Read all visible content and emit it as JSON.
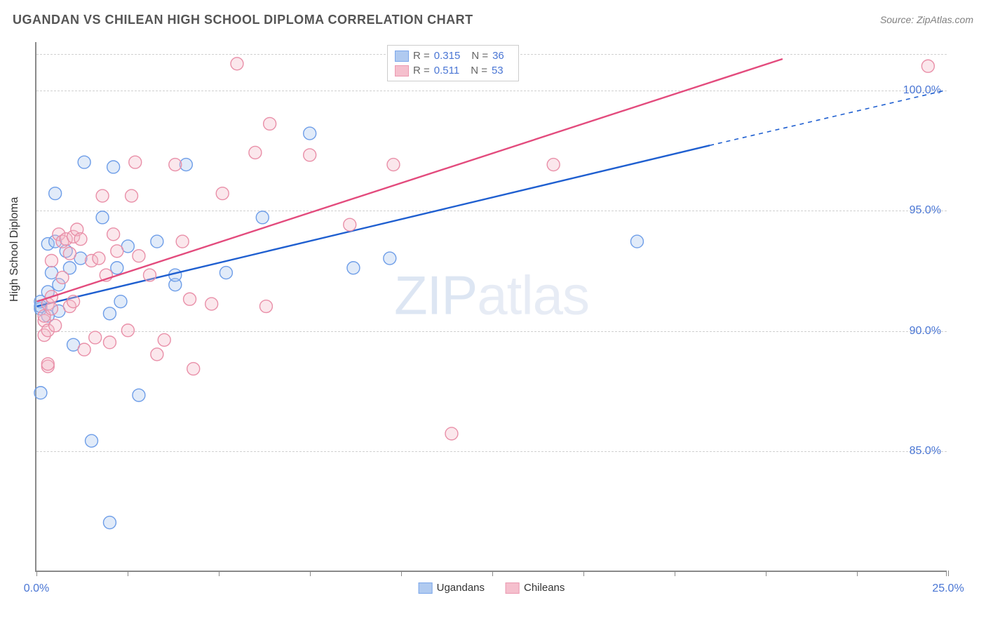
{
  "header": {
    "title": "UGANDAN VS CHILEAN HIGH SCHOOL DIPLOMA CORRELATION CHART",
    "source": "Source: ZipAtlas.com"
  },
  "watermark": {
    "zip": "ZIP",
    "atlas": "atlas"
  },
  "chart": {
    "type": "scatter",
    "y_axis_label": "High School Diploma",
    "xlim": [
      0,
      25
    ],
    "ylim": [
      80,
      102
    ],
    "x_ticks": [
      0,
      2.5,
      5,
      7.5,
      10,
      12.5,
      15,
      17.5,
      20,
      22.5,
      25
    ],
    "x_tick_labels": {
      "0": "0.0%",
      "25": "25.0%"
    },
    "y_gridlines": [
      85,
      90,
      95,
      100,
      101.5
    ],
    "y_tick_labels": {
      "85": "85.0%",
      "90": "90.0%",
      "95": "95.0%",
      "100": "100.0%"
    },
    "background_color": "#ffffff",
    "grid_color": "#d0d0d0",
    "axis_color": "#8a8a8a",
    "tick_label_color": "#4a76d4",
    "marker_radius": 9,
    "marker_stroke_width": 1.4,
    "marker_fill_opacity": 0.35,
    "trend_line_width": 2.4
  },
  "series": [
    {
      "name": "Ugandans",
      "color": "#6d9de8",
      "fill": "#a8c5ef",
      "line_color": "#1f5fd0",
      "R": "0.315",
      "N": "36",
      "trend": {
        "x1": 0,
        "y1": 91.0,
        "x2_solid": 18.5,
        "y2_solid": 97.7,
        "x2_dash": 25,
        "y2_dash": 100.0
      },
      "points": [
        [
          0.1,
          90.9
        ],
        [
          0.1,
          91.2
        ],
        [
          0.1,
          91.0
        ],
        [
          0.1,
          87.4
        ],
        [
          0.3,
          90.6
        ],
        [
          0.3,
          91.6
        ],
        [
          0.3,
          93.6
        ],
        [
          0.4,
          92.4
        ],
        [
          0.5,
          95.7
        ],
        [
          0.5,
          93.7
        ],
        [
          0.6,
          91.9
        ],
        [
          0.6,
          90.8
        ],
        [
          0.8,
          93.3
        ],
        [
          0.9,
          92.6
        ],
        [
          1.0,
          89.4
        ],
        [
          1.2,
          93.0
        ],
        [
          1.3,
          97.0
        ],
        [
          1.5,
          85.4
        ],
        [
          1.8,
          94.7
        ],
        [
          2.0,
          90.7
        ],
        [
          2.0,
          82.0
        ],
        [
          2.1,
          96.8
        ],
        [
          2.2,
          92.6
        ],
        [
          2.3,
          91.2
        ],
        [
          2.5,
          93.5
        ],
        [
          2.8,
          87.3
        ],
        [
          3.3,
          93.7
        ],
        [
          3.8,
          91.9
        ],
        [
          3.8,
          92.3
        ],
        [
          4.1,
          96.9
        ],
        [
          5.2,
          92.4
        ],
        [
          6.2,
          94.7
        ],
        [
          7.5,
          98.2
        ],
        [
          8.7,
          92.6
        ],
        [
          9.7,
          93.0
        ],
        [
          16.5,
          93.7
        ]
      ]
    },
    {
      "name": "Chileans",
      "color": "#e98fa8",
      "fill": "#f4b9c8",
      "line_color": "#e34b7d",
      "R": "0.511",
      "N": "53",
      "trend": {
        "x1": 0,
        "y1": 91.2,
        "x2_solid": 20.5,
        "y2_solid": 101.3,
        "x2_dash": 20.5,
        "y2_dash": 101.3
      },
      "points": [
        [
          0.2,
          90.4
        ],
        [
          0.2,
          90.6
        ],
        [
          0.2,
          89.8
        ],
        [
          0.3,
          91.1
        ],
        [
          0.3,
          90.0
        ],
        [
          0.3,
          88.5
        ],
        [
          0.3,
          88.6
        ],
        [
          0.4,
          90.9
        ],
        [
          0.4,
          91.4
        ],
        [
          0.4,
          92.9
        ],
        [
          0.5,
          90.2
        ],
        [
          0.6,
          94.0
        ],
        [
          0.7,
          93.7
        ],
        [
          0.7,
          92.2
        ],
        [
          0.8,
          93.8
        ],
        [
          0.9,
          93.2
        ],
        [
          0.9,
          91.0
        ],
        [
          1.0,
          91.2
        ],
        [
          1.0,
          93.9
        ],
        [
          1.1,
          94.2
        ],
        [
          1.2,
          93.8
        ],
        [
          1.3,
          89.2
        ],
        [
          1.5,
          92.9
        ],
        [
          1.6,
          89.7
        ],
        [
          1.7,
          93.0
        ],
        [
          1.8,
          95.6
        ],
        [
          1.9,
          92.3
        ],
        [
          2.0,
          89.5
        ],
        [
          2.1,
          94.0
        ],
        [
          2.2,
          93.3
        ],
        [
          2.5,
          90.0
        ],
        [
          2.6,
          95.6
        ],
        [
          2.7,
          97.0
        ],
        [
          2.8,
          93.1
        ],
        [
          3.1,
          92.3
        ],
        [
          3.3,
          89.0
        ],
        [
          3.5,
          89.6
        ],
        [
          3.8,
          96.9
        ],
        [
          4.0,
          93.7
        ],
        [
          4.2,
          91.3
        ],
        [
          4.3,
          88.4
        ],
        [
          4.8,
          91.1
        ],
        [
          5.1,
          95.7
        ],
        [
          5.5,
          101.1
        ],
        [
          6.0,
          97.4
        ],
        [
          6.3,
          91.0
        ],
        [
          6.4,
          98.6
        ],
        [
          7.5,
          97.3
        ],
        [
          8.6,
          94.4
        ],
        [
          9.8,
          96.9
        ],
        [
          11.4,
          85.7
        ],
        [
          14.2,
          96.9
        ],
        [
          24.5,
          101.0
        ]
      ]
    }
  ],
  "legend_top": {
    "rows": [
      {
        "series_idx": 0,
        "r_label": "R =",
        "n_label": "N ="
      },
      {
        "series_idx": 1,
        "r_label": "R =",
        "n_label": "N ="
      }
    ]
  }
}
